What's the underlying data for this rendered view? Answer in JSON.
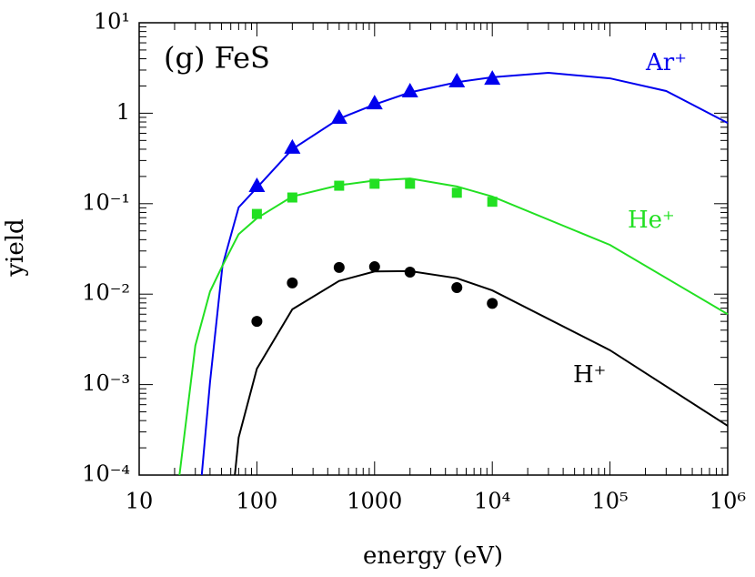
{
  "chart_data": {
    "type": "line",
    "title": "(g) FeS",
    "xlabel": "energy (eV)",
    "ylabel": "yield",
    "xscale": "log",
    "yscale": "log",
    "xlim": [
      10,
      1000000
    ],
    "ylim": [
      0.0001,
      10
    ],
    "xticks": [
      10,
      100,
      1000,
      {
        "value": 10000,
        "label": "10⁴"
      },
      {
        "value": 100000,
        "label": "10⁵"
      },
      {
        "value": 1000000,
        "label": "10⁶"
      }
    ],
    "yticks": [
      {
        "value": 0.0001,
        "label": "10⁻⁴"
      },
      {
        "value": 0.001,
        "label": "10⁻³"
      },
      {
        "value": 0.01,
        "label": "10⁻²"
      },
      {
        "value": 0.1,
        "label": "10⁻¹"
      },
      1,
      {
        "value": 10,
        "label": "10¹"
      }
    ],
    "series": [
      {
        "name": "Ar⁺",
        "color": "#0000ee",
        "marker": "triangle",
        "x": [
          34,
          40,
          51,
          70,
          100,
          200,
          500,
          1000,
          2000,
          5000,
          10000,
          30000,
          100000,
          300000,
          1000000
        ],
        "values": [
          0.0001,
          0.00107,
          0.0206,
          0.091,
          0.15,
          0.4,
          0.87,
          1.25,
          1.7,
          2.2,
          2.5,
          2.8,
          2.43,
          1.76,
          0.78
        ],
        "points": {
          "x": [
            100,
            200,
            500,
            1000,
            2000,
            5000,
            10000
          ],
          "values": [
            0.158,
            0.42,
            0.9,
            1.3,
            1.76,
            2.27,
            2.43
          ]
        }
      },
      {
        "name": "He⁺",
        "color": "#22e022",
        "marker": "square",
        "x": [
          22,
          30,
          40,
          51,
          70,
          100,
          200,
          500,
          1000,
          2000,
          5000,
          10000,
          100000,
          1000000
        ],
        "values": [
          0.0001,
          0.0027,
          0.0107,
          0.0206,
          0.046,
          0.069,
          0.12,
          0.16,
          0.18,
          0.19,
          0.155,
          0.12,
          0.035,
          0.006
        ],
        "points": {
          "x": [
            100,
            200,
            500,
            1000,
            2000,
            5000,
            10000
          ],
          "values": [
            0.077,
            0.117,
            0.158,
            0.166,
            0.166,
            0.132,
            0.105
          ]
        }
      },
      {
        "name": "H⁺",
        "color": "#000000",
        "marker": "circle",
        "x": [
          65,
          70,
          100,
          200,
          500,
          1000,
          2000,
          5000,
          10000,
          100000,
          1000000
        ],
        "values": [
          0.0001,
          0.00026,
          0.0015,
          0.0068,
          0.014,
          0.0178,
          0.018,
          0.015,
          0.011,
          0.0024,
          0.00035
        ],
        "points": {
          "x": [
            100,
            200,
            500,
            1000,
            2000,
            5000,
            10000
          ],
          "values": [
            0.005,
            0.0133,
            0.0197,
            0.0201,
            0.0175,
            0.0118,
            0.0079
          ]
        }
      }
    ]
  }
}
